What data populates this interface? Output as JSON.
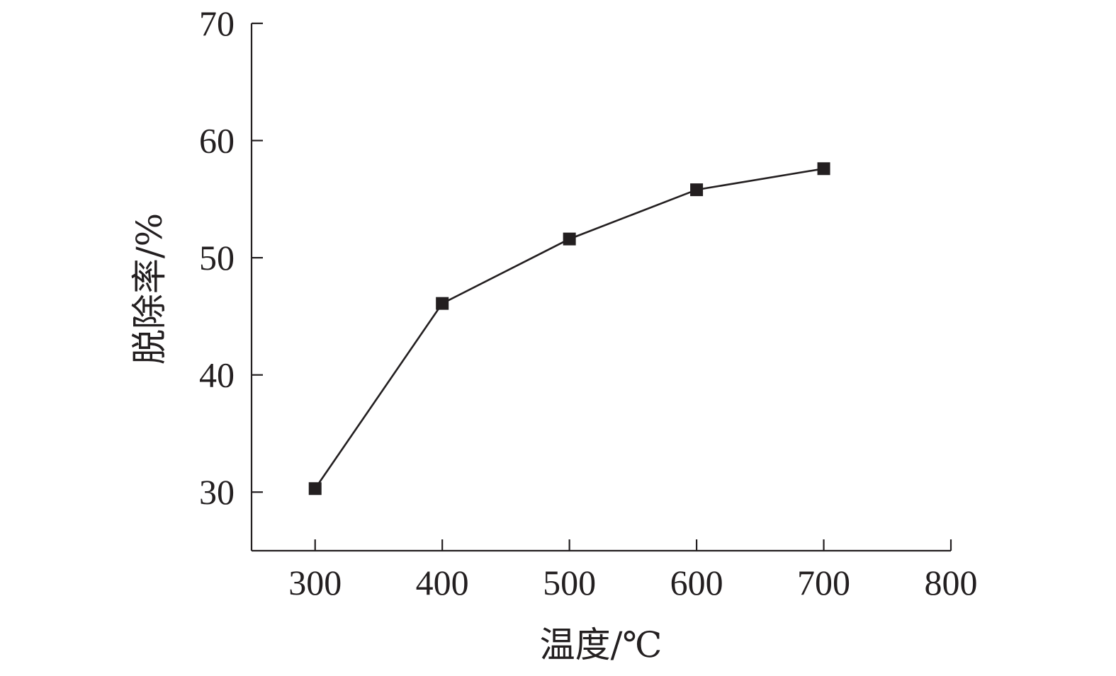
{
  "chart_data": {
    "type": "line",
    "title": "",
    "xlabel": "温度/℃",
    "ylabel": "脱除率/%",
    "xlim": [
      250,
      800
    ],
    "ylim": [
      25,
      70
    ],
    "x_ticks": [
      300,
      400,
      500,
      600,
      700,
      800
    ],
    "y_ticks": [
      30,
      40,
      50,
      60,
      70
    ],
    "grid": false,
    "marker": "square",
    "series": [
      {
        "x": [
          300,
          400,
          500,
          600,
          700
        ],
        "values": [
          30.3,
          46.1,
          51.6,
          55.8,
          57.6
        ]
      }
    ]
  }
}
